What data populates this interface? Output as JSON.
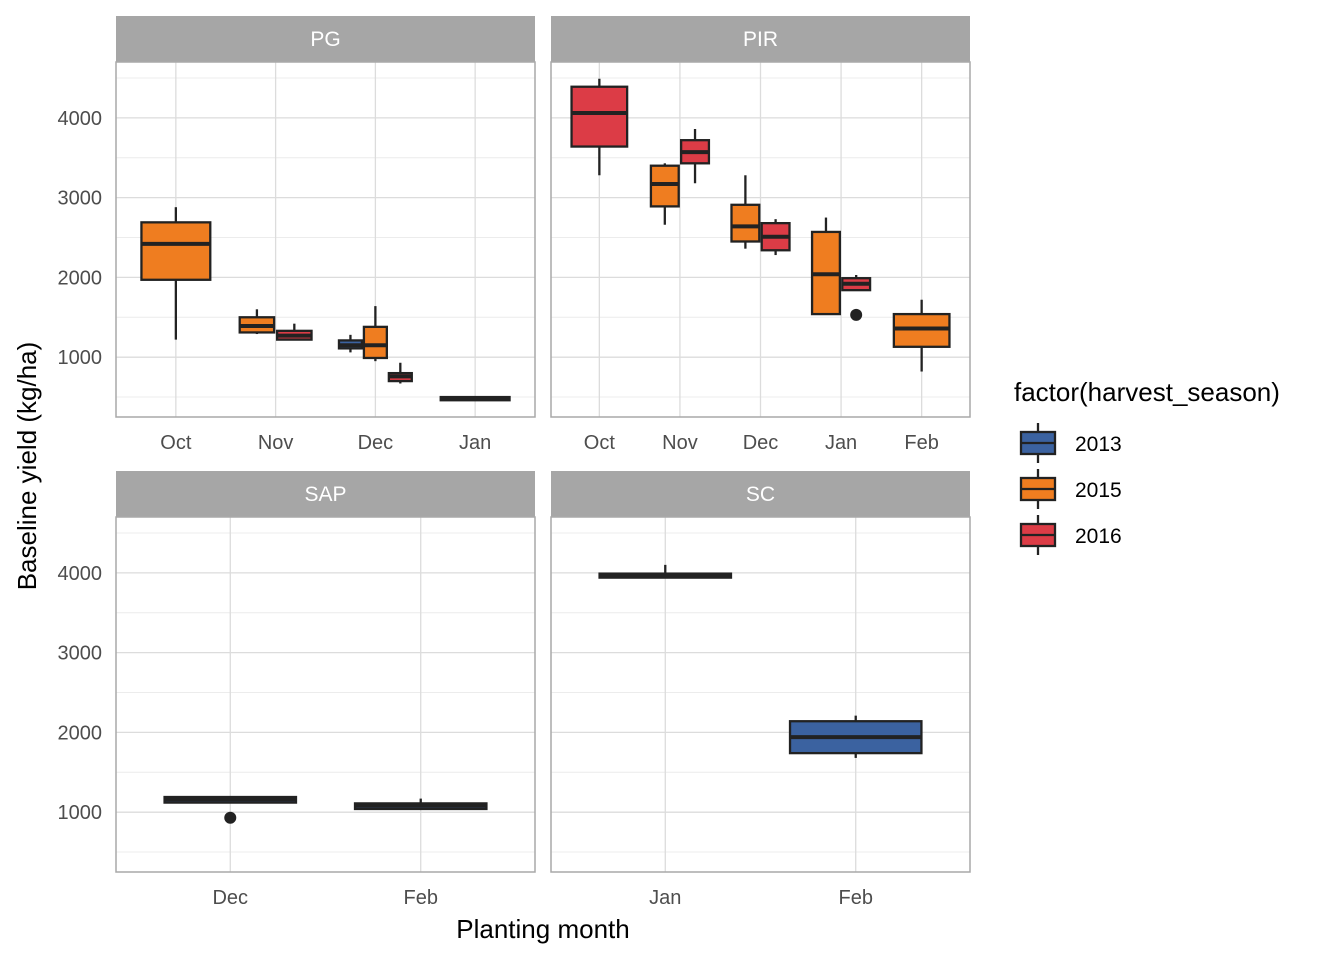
{
  "chart_data": {
    "type": "boxplot",
    "xlabel": "Planting month",
    "ylabel": "Baseline yield (kg/ha)",
    "legend": {
      "title": "factor(harvest_season)",
      "placement": "right",
      "items": [
        {
          "label": "2013",
          "color": "#3b62a0"
        },
        {
          "label": "2015",
          "color": "#ef7d20"
        },
        {
          "label": "2016",
          "color": "#dc3c46"
        }
      ]
    },
    "y_ticks": [
      1000,
      2000,
      3000,
      4000
    ],
    "ylim": [
      250,
      4700
    ],
    "grid": true,
    "facets": [
      {
        "label": "PG",
        "categories": [
          "Oct",
          "Nov",
          "Dec",
          "Jan"
        ],
        "boxes": [
          {
            "category": "Oct",
            "season": "2015",
            "min": 1220,
            "q1": 1970,
            "median": 2420,
            "q3": 2690,
            "max": 2880,
            "outliers": []
          },
          {
            "category": "Nov",
            "season": "2015",
            "min": 1290,
            "q1": 1310,
            "median": 1390,
            "q3": 1500,
            "max": 1600,
            "outliers": []
          },
          {
            "category": "Nov",
            "season": "2016",
            "min": 1220,
            "q1": 1220,
            "median": 1270,
            "q3": 1330,
            "max": 1420,
            "outliers": []
          },
          {
            "category": "Dec",
            "season": "2013",
            "min": 1060,
            "q1": 1110,
            "median": 1150,
            "q3": 1210,
            "max": 1280,
            "outliers": []
          },
          {
            "category": "Dec",
            "season": "2015",
            "min": 950,
            "q1": 990,
            "median": 1150,
            "q3": 1380,
            "max": 1640,
            "outliers": []
          },
          {
            "category": "Dec",
            "season": "2016",
            "min": 670,
            "q1": 700,
            "median": 760,
            "q3": 800,
            "max": 930,
            "outliers": []
          },
          {
            "category": "Jan",
            "season": "2015",
            "min": 460,
            "q1": 460,
            "median": 480,
            "q3": 500,
            "max": 500,
            "outliers": []
          }
        ]
      },
      {
        "label": "PIR",
        "categories": [
          "Oct",
          "Nov",
          "Dec",
          "Jan",
          "Feb"
        ],
        "boxes": [
          {
            "category": "Oct",
            "season": "2016",
            "min": 3280,
            "q1": 3640,
            "median": 4060,
            "q3": 4390,
            "max": 4490,
            "outliers": []
          },
          {
            "category": "Nov",
            "season": "2015",
            "min": 2660,
            "q1": 2890,
            "median": 3170,
            "q3": 3400,
            "max": 3430,
            "outliers": []
          },
          {
            "category": "Nov",
            "season": "2016",
            "min": 3180,
            "q1": 3430,
            "median": 3570,
            "q3": 3720,
            "max": 3860,
            "outliers": []
          },
          {
            "category": "Dec",
            "season": "2015",
            "min": 2360,
            "q1": 2450,
            "median": 2640,
            "q3": 2910,
            "max": 3280,
            "outliers": []
          },
          {
            "category": "Dec",
            "season": "2016",
            "min": 2280,
            "q1": 2340,
            "median": 2510,
            "q3": 2680,
            "max": 2730,
            "outliers": []
          },
          {
            "category": "Jan",
            "season": "2015",
            "min": 1540,
            "q1": 1540,
            "median": 2040,
            "q3": 2570,
            "max": 2750,
            "outliers": []
          },
          {
            "category": "Jan",
            "season": "2016",
            "min": 1840,
            "q1": 1840,
            "median": 1920,
            "q3": 1990,
            "max": 2030,
            "outliers": [
              1530
            ]
          },
          {
            "category": "Feb",
            "season": "2015",
            "min": 820,
            "q1": 1130,
            "median": 1360,
            "q3": 1540,
            "max": 1720,
            "outliers": []
          }
        ]
      },
      {
        "label": "SAP",
        "categories": [
          "Dec",
          "Feb"
        ],
        "boxes": [
          {
            "category": "Dec",
            "season": "2013",
            "min": 1120,
            "q1": 1120,
            "median": 1160,
            "q3": 1190,
            "max": 1190,
            "outliers": [
              930
            ]
          },
          {
            "category": "Feb",
            "season": "2013",
            "min": 1040,
            "q1": 1040,
            "median": 1080,
            "q3": 1110,
            "max": 1170,
            "outliers": []
          }
        ]
      },
      {
        "label": "SC",
        "categories": [
          "Jan",
          "Feb"
        ],
        "boxes": [
          {
            "category": "Jan",
            "season": "2013",
            "min": 3940,
            "q1": 3940,
            "median": 3960,
            "q3": 3990,
            "max": 4100,
            "outliers": []
          },
          {
            "category": "Feb",
            "season": "2013",
            "min": 1680,
            "q1": 1740,
            "median": 1940,
            "q3": 2140,
            "max": 2210,
            "outliers": []
          }
        ]
      }
    ]
  }
}
